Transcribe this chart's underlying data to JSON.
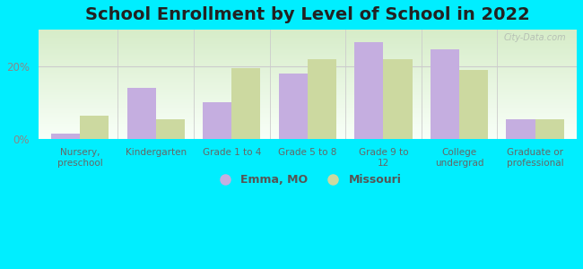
{
  "title": "School Enrollment by Level of School in 2022",
  "categories": [
    "Nursery,\npreschool",
    "Kindergarten",
    "Grade 1 to 4",
    "Grade 5 to 8",
    "Grade 9 to\n12",
    "College\nundergrad",
    "Graduate or\nprofessional"
  ],
  "emma_values": [
    1.5,
    14.0,
    10.0,
    18.0,
    26.5,
    24.5,
    5.5
  ],
  "missouri_values": [
    6.5,
    5.5,
    19.5,
    22.0,
    22.0,
    19.0,
    5.5
  ],
  "emma_color": "#c5aee0",
  "missouri_color": "#ccd9a0",
  "background_color": "#00eeff",
  "grad_top_color": "#d6ecc8",
  "grad_bot_color": "#f8fff8",
  "ylim": [
    0,
    30
  ],
  "yticks": [
    0,
    20
  ],
  "ytick_labels": [
    "0%",
    "20%"
  ],
  "legend_emma": "Emma, MO",
  "legend_missouri": "Missouri",
  "watermark": "City-Data.com",
  "title_fontsize": 14,
  "bar_width": 0.38
}
